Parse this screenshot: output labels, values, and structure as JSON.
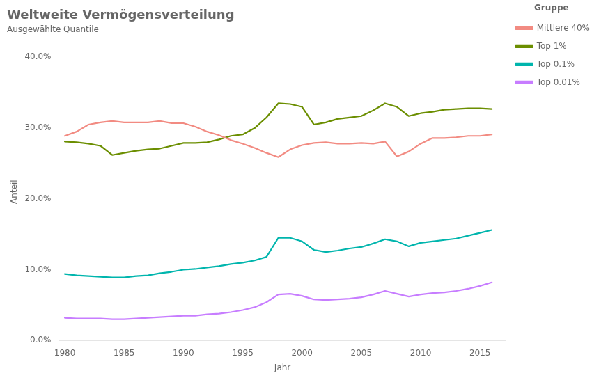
{
  "chart_data": {
    "type": "line",
    "title": "Weltweite Vermögensverteilung",
    "subtitle": "Ausgewählte Quantile",
    "xlabel": "Jahr",
    "ylabel": "Anteil",
    "legend_title": "Gruppe",
    "x": [
      1980,
      1981,
      1982,
      1983,
      1984,
      1985,
      1986,
      1987,
      1988,
      1989,
      1990,
      1991,
      1992,
      1993,
      1994,
      1995,
      1996,
      1997,
      1998,
      1999,
      2000,
      2001,
      2002,
      2003,
      2004,
      2005,
      2006,
      2007,
      2008,
      2009,
      2010,
      2011,
      2012,
      2013,
      2014,
      2015,
      2016
    ],
    "series": [
      {
        "name": "Mittlere 40%",
        "color": "#F28B82",
        "values": [
          0.289,
          0.295,
          0.305,
          0.308,
          0.31,
          0.308,
          0.308,
          0.308,
          0.31,
          0.307,
          0.307,
          0.302,
          0.295,
          0.29,
          0.283,
          0.278,
          0.272,
          0.265,
          0.259,
          0.27,
          0.276,
          0.279,
          0.28,
          0.278,
          0.278,
          0.279,
          0.278,
          0.281,
          0.26,
          0.267,
          0.278,
          0.286,
          0.286,
          0.287,
          0.289,
          0.289,
          0.291
        ]
      },
      {
        "name": "Top 1%",
        "color": "#6B8E00",
        "values": [
          0.281,
          0.28,
          0.278,
          0.275,
          0.262,
          0.265,
          0.268,
          0.27,
          0.271,
          0.275,
          0.279,
          0.279,
          0.28,
          0.284,
          0.289,
          0.291,
          0.3,
          0.315,
          0.335,
          0.334,
          0.33,
          0.305,
          0.308,
          0.313,
          0.315,
          0.317,
          0.325,
          0.335,
          0.33,
          0.317,
          0.321,
          0.323,
          0.326,
          0.327,
          0.328,
          0.328,
          0.327
        ]
      },
      {
        "name": "Top 0.1%",
        "color": "#00B5AD",
        "values": [
          0.094,
          0.092,
          0.091,
          0.09,
          0.089,
          0.089,
          0.091,
          0.092,
          0.095,
          0.097,
          0.1,
          0.101,
          0.103,
          0.105,
          0.108,
          0.11,
          0.113,
          0.118,
          0.145,
          0.145,
          0.14,
          0.128,
          0.125,
          0.127,
          0.13,
          0.132,
          0.137,
          0.143,
          0.14,
          0.133,
          0.138,
          0.14,
          0.142,
          0.144,
          0.148,
          0.152,
          0.156
        ]
      },
      {
        "name": "Top 0.01%",
        "color": "#C77DFF",
        "values": [
          0.032,
          0.031,
          0.031,
          0.031,
          0.03,
          0.03,
          0.031,
          0.032,
          0.033,
          0.034,
          0.035,
          0.035,
          0.037,
          0.038,
          0.04,
          0.043,
          0.047,
          0.054,
          0.065,
          0.066,
          0.063,
          0.058,
          0.057,
          0.058,
          0.059,
          0.061,
          0.065,
          0.07,
          0.066,
          0.062,
          0.065,
          0.067,
          0.068,
          0.07,
          0.073,
          0.077,
          0.082
        ]
      }
    ],
    "xlim": [
      1979.5,
      2017.2
    ],
    "xticks": [
      1980,
      1985,
      1990,
      1995,
      2000,
      2005,
      2010,
      2015
    ],
    "ylim": [
      0.0,
      0.42
    ],
    "yticks": [
      {
        "value": 0.0,
        "label": "0.0%"
      },
      {
        "value": 0.1,
        "label": "10.0%"
      },
      {
        "value": 0.2,
        "label": "20.0%"
      },
      {
        "value": 0.3,
        "label": "30.0%"
      },
      {
        "value": 0.4,
        "label": "40.0%"
      }
    ],
    "grid": false,
    "legend": "upper right"
  }
}
